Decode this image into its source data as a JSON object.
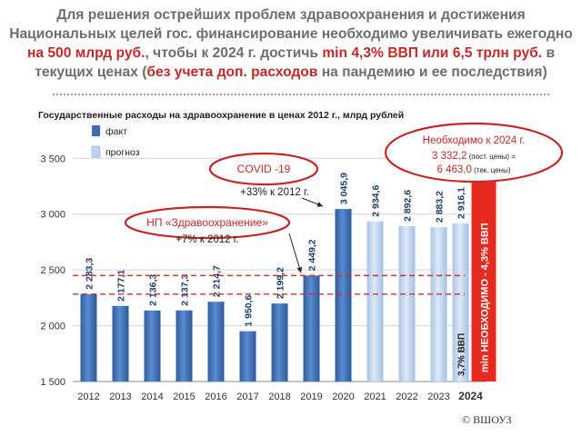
{
  "header": {
    "line1": "Для решения острейших проблем здравоохранения и достижения",
    "line2": "Национальных целей гос. финансирование необходимо увеличивать ежегодно",
    "line3_red1": "на 500 млрд руб.",
    "line3_mid": ", чтобы к 2024 г. достичь ",
    "line3_red2": "min 4,3% ВВП или 6,5 трлн руб.",
    "line3_end": " в",
    "line4_start": "текущих ценах (",
    "line4_red": "без учета доп. расходов",
    "line4_end": " на пандемию и ее последствия)"
  },
  "credit": "© ВШОУЗ",
  "colors": {
    "fact": "#3d6db3",
    "forecast": "#bdd3ee",
    "required": "#e52b20",
    "accent_red": "#c62828",
    "grid": "#d4d4d4"
  },
  "chart_data": {
    "type": "bar",
    "title": "Государственные расходы на здравоохранение в ценах 2012 г., млрд рублей",
    "categories": [
      "2012",
      "2013",
      "2014",
      "2015",
      "2016",
      "2017",
      "2018",
      "2019",
      "2020",
      "2021",
      "2022",
      "2023",
      "2024"
    ],
    "series": [
      {
        "name": "факт",
        "values": [
          2283.3,
          2177.1,
          2136.3,
          2137.3,
          2214.7,
          1950.6,
          2199.2,
          2449.2,
          3045.9,
          null,
          null,
          null,
          null
        ]
      },
      {
        "name": "прогноз",
        "values": [
          null,
          null,
          null,
          null,
          null,
          null,
          null,
          null,
          null,
          2934.6,
          2892.6,
          2883.2,
          2916.1
        ]
      }
    ],
    "value_labels": [
      "2 283,3",
      "2 177,1",
      "2 136,3",
      "2 137,3",
      "2 214,7",
      "1 950,6",
      "2 199,2",
      "2 449,2",
      "3 045,9",
      "2 934,6",
      "2 892,6",
      "2 883,2",
      "2 916,1"
    ],
    "required_2024": {
      "value": 3332.2,
      "label": "min НЕОБХОДИМО - 4,3% ВВП"
    },
    "share_2024_label": "3,7% ВВП",
    "yticks": [
      1500,
      2000,
      2500,
      3000,
      3500
    ],
    "ytick_labels": [
      "1 500",
      "2 000",
      "2 500",
      "3 000",
      "3 500"
    ],
    "ylim": [
      1500,
      3600
    ],
    "reference_lines": [
      2283.3,
      2449.2
    ],
    "legend_position": "top-left",
    "annotations": {
      "covid": {
        "title": "COVID -19",
        "text": "+33% к 2012 г."
      },
      "np": {
        "title": "НП «Здравоохранение»",
        "text": "+7% к 2012 г."
      },
      "need": {
        "line1": "Необходимо к 2024 г.",
        "line2": "3 332,2",
        "line2_note": " (пост. цены) =",
        "line3": "6 463,0",
        "line3_note": " (тек. цены)"
      }
    }
  }
}
